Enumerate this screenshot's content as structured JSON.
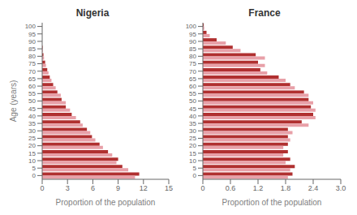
{
  "chart_data": [
    {
      "type": "bar",
      "orientation": "horizontal",
      "title": "Nigeria",
      "xlabel": "Proportion of the population",
      "ylabel": "Age (years)",
      "categories": [
        "0",
        "5",
        "10",
        "15",
        "20",
        "25",
        "30",
        "35",
        "40",
        "45",
        "50",
        "55",
        "60",
        "65",
        "70",
        "75",
        "80",
        "85",
        "90",
        "95",
        "100"
      ],
      "series": [
        {
          "color": "#b03030",
          "values": [
            11.5,
            9.5,
            9.0,
            7.8,
            6.8,
            5.9,
            5.3,
            4.5,
            3.5,
            2.8,
            2.3,
            1.8,
            1.3,
            0.9,
            0.6,
            0.35,
            0.15,
            0.05,
            0.0,
            0.0,
            0.0
          ]
        },
        {
          "color": "#e8a0a8",
          "values": [
            11.0,
            10.2,
            8.8,
            8.3,
            7.2,
            6.3,
            5.7,
            4.8,
            4.0,
            3.3,
            2.8,
            2.2,
            1.6,
            1.1,
            0.75,
            0.45,
            0.22,
            0.08,
            0.0,
            0.0,
            0.0
          ]
        }
      ],
      "xlim": [
        0,
        15
      ],
      "xticks": [
        0,
        3,
        6,
        9,
        12,
        15
      ],
      "grid": false
    },
    {
      "type": "bar",
      "orientation": "horizontal",
      "title": "France",
      "xlabel": "Proportion of the population",
      "categories": [
        "0",
        "5",
        "10",
        "15",
        "20",
        "25",
        "30",
        "35",
        "40",
        "45",
        "50",
        "55",
        "60",
        "65",
        "70",
        "75",
        "80",
        "85",
        "90",
        "95",
        "100"
      ],
      "series": [
        {
          "color": "#b03030",
          "values": [
            1.95,
            2.0,
            1.9,
            1.85,
            1.85,
            1.85,
            1.85,
            2.15,
            2.4,
            2.35,
            2.3,
            2.2,
            1.9,
            1.65,
            1.25,
            1.2,
            1.15,
            0.65,
            0.3,
            0.08,
            0.02
          ]
        },
        {
          "color": "#e8a0a8",
          "values": [
            1.85,
            1.9,
            1.8,
            1.75,
            1.75,
            1.9,
            1.95,
            2.3,
            2.45,
            2.45,
            2.4,
            2.3,
            2.0,
            1.8,
            1.4,
            1.35,
            1.35,
            0.82,
            0.5,
            0.15,
            0.03
          ]
        }
      ],
      "xlim": [
        0,
        3
      ],
      "xticks": [
        0,
        0.6,
        1.2,
        1.8,
        2.4,
        {
          "value": 3.0,
          "label": "3.0"
        }
      ],
      "grid": false
    }
  ]
}
